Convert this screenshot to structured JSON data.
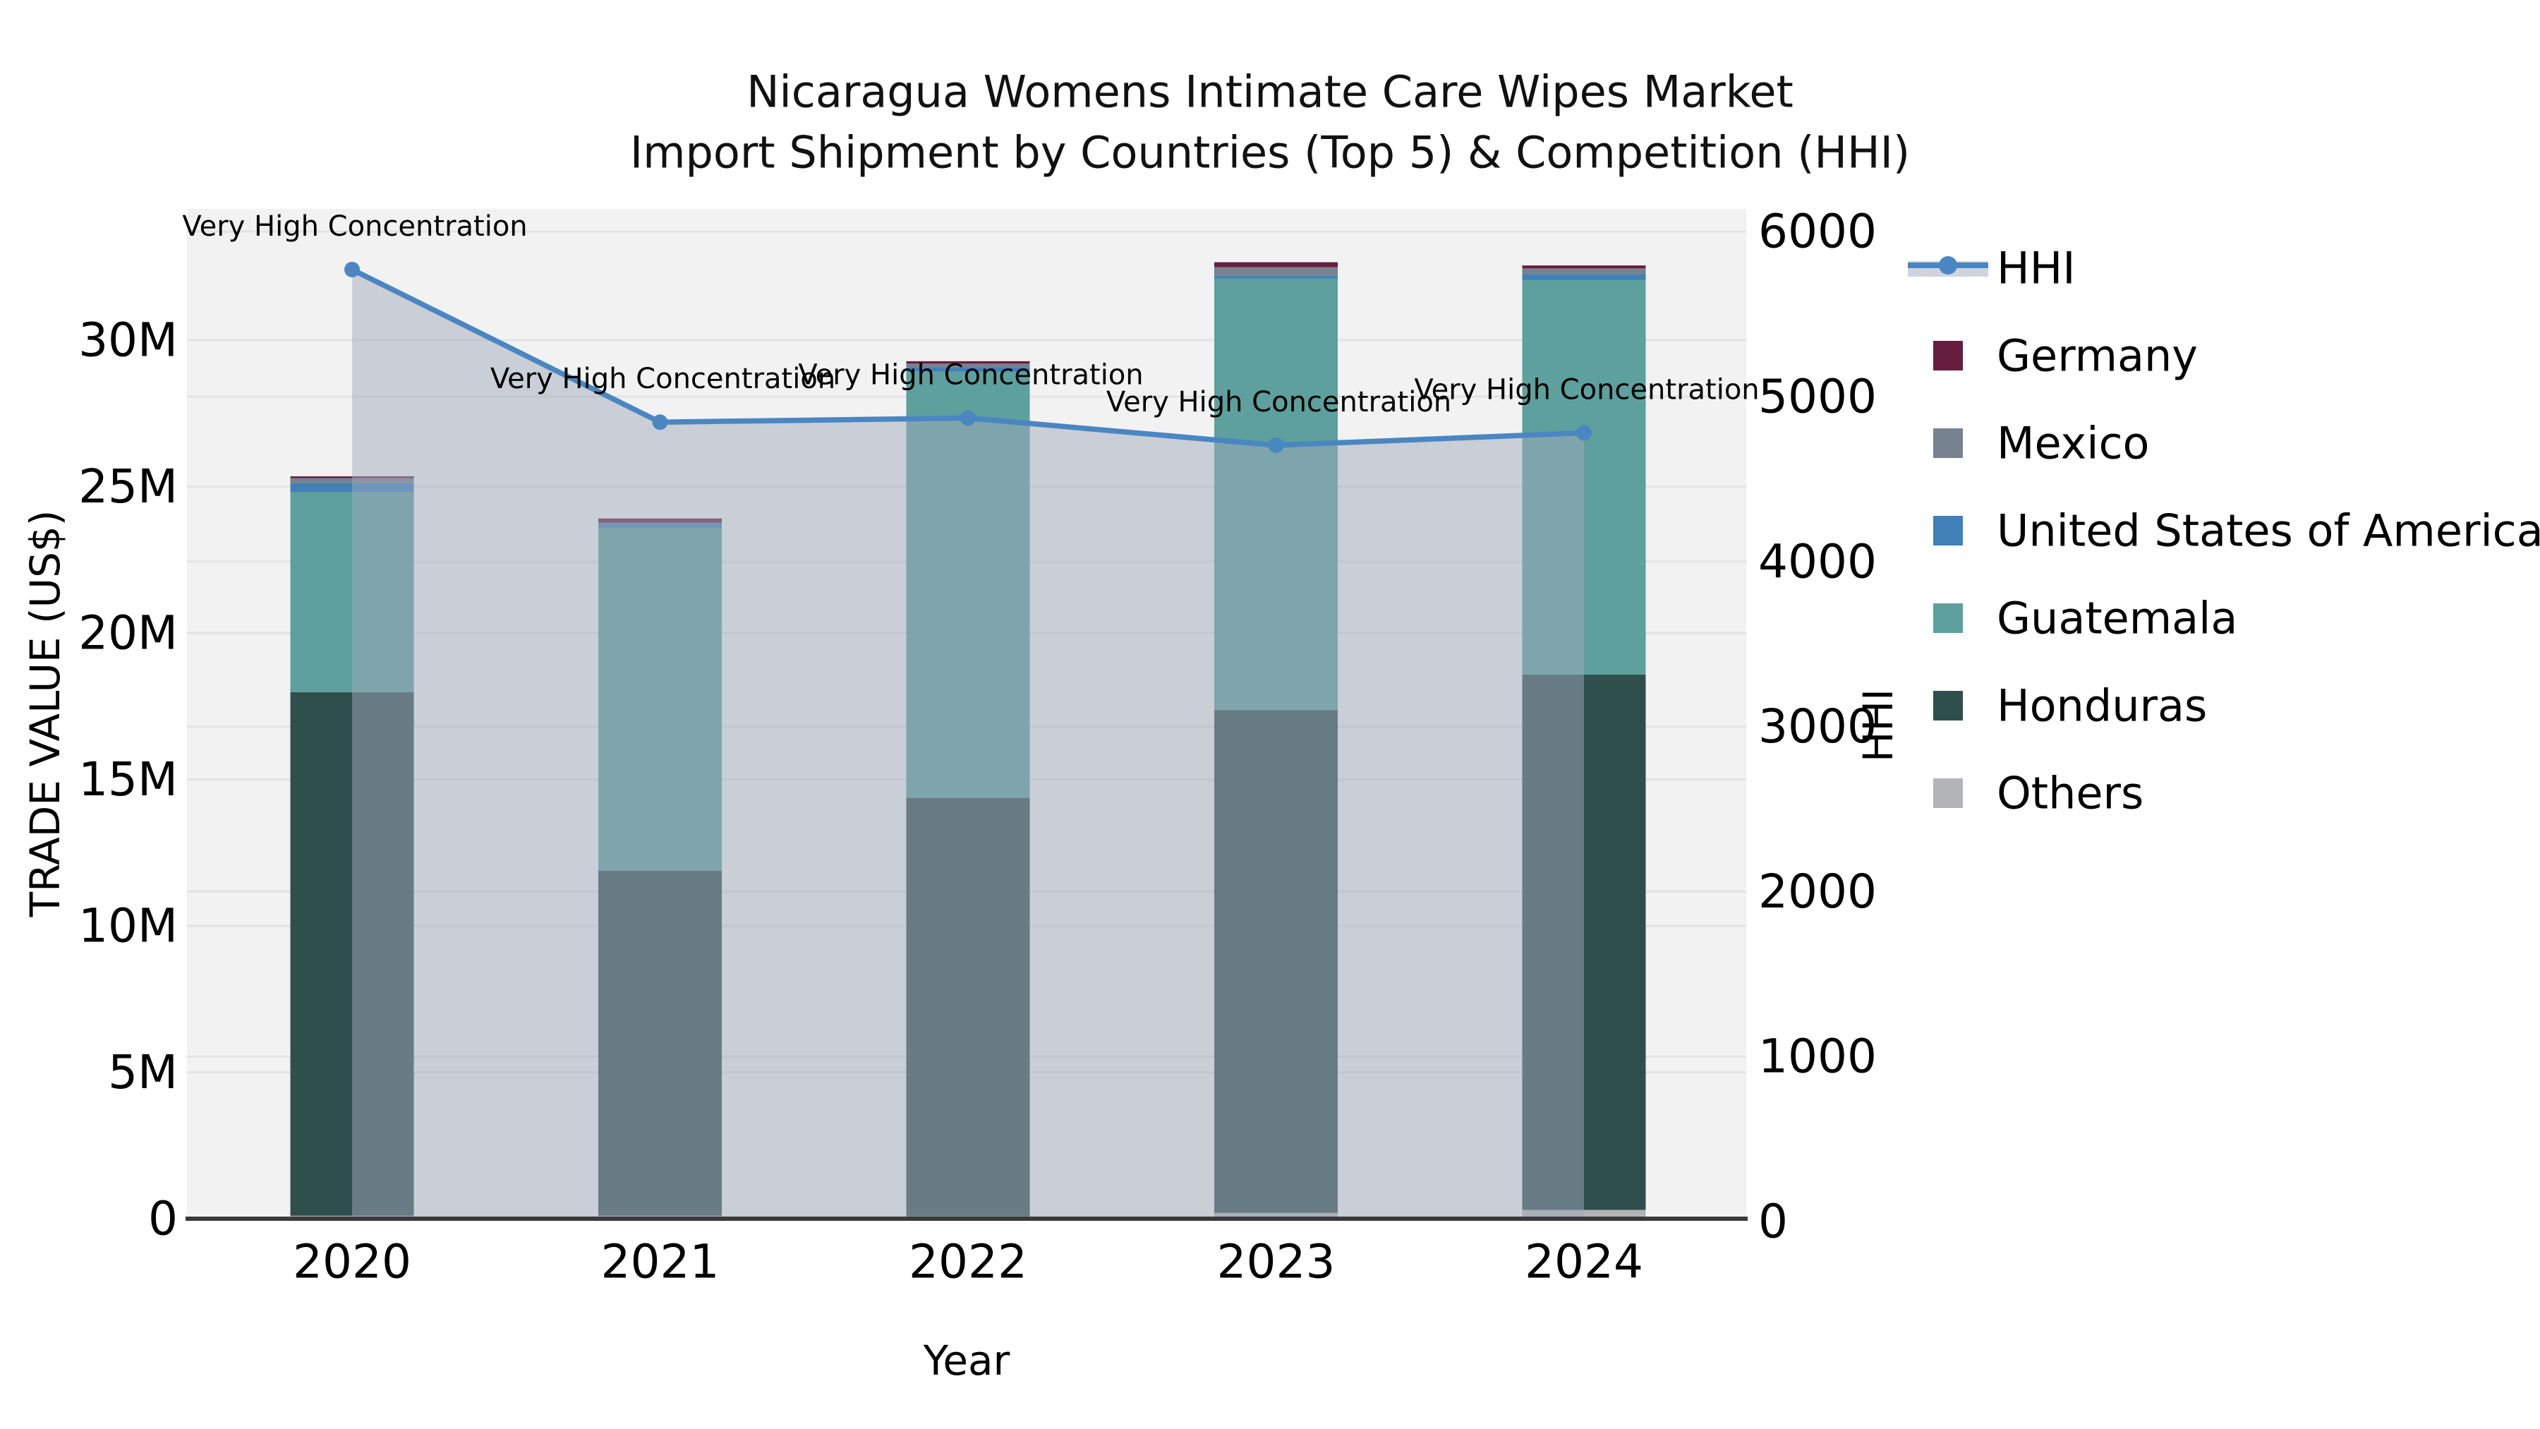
{
  "title": {
    "line1": "Nicaragua Womens Intimate Care Wipes Market",
    "line2": "Import Shipment by Countries (Top 5) & Competition (HHI)"
  },
  "axes": {
    "x": {
      "label": "Year",
      "categories": [
        "2020",
        "2021",
        "2022",
        "2023",
        "2024"
      ]
    },
    "left": {
      "label": "TRADE VALUE (US$)",
      "ticks": [
        "0",
        "5M",
        "10M",
        "15M",
        "20M",
        "25M",
        "30M"
      ]
    },
    "right": {
      "label": "HHI",
      "ticks": [
        "0",
        "1000",
        "2000",
        "3000",
        "4000",
        "5000",
        "6000"
      ]
    }
  },
  "legend": {
    "items": [
      {
        "label": "HHI",
        "type": "line",
        "color": "#4a86c2"
      },
      {
        "label": "Germany",
        "type": "swatch",
        "color": "#671d3e"
      },
      {
        "label": "Mexico",
        "type": "swatch",
        "color": "#76828f"
      },
      {
        "label": "United States of America",
        "type": "swatch",
        "color": "#4180b8"
      },
      {
        "label": "Guatemala",
        "type": "swatch",
        "color": "#5da09d"
      },
      {
        "label": "Honduras",
        "type": "swatch",
        "color": "#2f4f4d"
      },
      {
        "label": "Others",
        "type": "swatch",
        "color": "#b3b4b6"
      }
    ]
  },
  "chart_data": {
    "type": "bar",
    "subtype": "stacked-bars-with-dual-axis-line",
    "title": "Nicaragua Womens Intimate Care Wipes Market Import Shipment by Countries (Top 5) & Competition (HHI)",
    "xlabel": "Year",
    "ylabel": "TRADE VALUE (US$)",
    "y2label": "HHI",
    "unit": "USD millions",
    "categories": [
      "2020",
      "2021",
      "2022",
      "2023",
      "2024"
    ],
    "stack_order_bottom_to_top": [
      "Others",
      "Honduras",
      "Guatemala",
      "United States of America",
      "Mexico",
      "Germany"
    ],
    "series": [
      {
        "name": "Others",
        "color": "#b3b4b6",
        "values": [
          0.1,
          0.1,
          0.08,
          0.2,
          0.3
        ]
      },
      {
        "name": "Honduras",
        "color": "#2f4f4d",
        "values": [
          17.88,
          11.78,
          14.29,
          17.17,
          18.28
        ]
      },
      {
        "name": "Guatemala",
        "color": "#5da09d",
        "values": [
          6.83,
          11.71,
          14.55,
          14.73,
          13.47
        ]
      },
      {
        "name": "United States of America",
        "color": "#4180b8",
        "values": [
          0.3,
          0.16,
          0.14,
          0.1,
          0.21
        ]
      },
      {
        "name": "Mexico",
        "color": "#76828f",
        "values": [
          0.18,
          0.02,
          0.14,
          0.29,
          0.19
        ]
      },
      {
        "name": "Germany",
        "color": "#671d3e",
        "values": [
          0.06,
          0.14,
          0.08,
          0.17,
          0.1
        ]
      }
    ],
    "bar_totals": [
      25.35,
      23.91,
      29.28,
      32.66,
      32.55
    ],
    "line_series": {
      "name": "HHI",
      "axis": "right",
      "color": "#4a86c2",
      "area_fill": "rgba(160,170,188,0.5)",
      "values": [
        5770,
        4845,
        4870,
        4705,
        4780
      ]
    },
    "point_labels": [
      "Very High Concentration",
      "Very High Concentration",
      "Very High Concentration",
      "Very High Concentration",
      "Very High Concentration"
    ],
    "ylim_left_musd": [
      0,
      34.5
    ],
    "ylim_right": [
      0,
      6120
    ],
    "grid": true,
    "legend_position": "right",
    "plot_bg": "#f2f2f2",
    "grid_color": "#e3e3e3",
    "axis_line_color": "#3a3a3a"
  }
}
